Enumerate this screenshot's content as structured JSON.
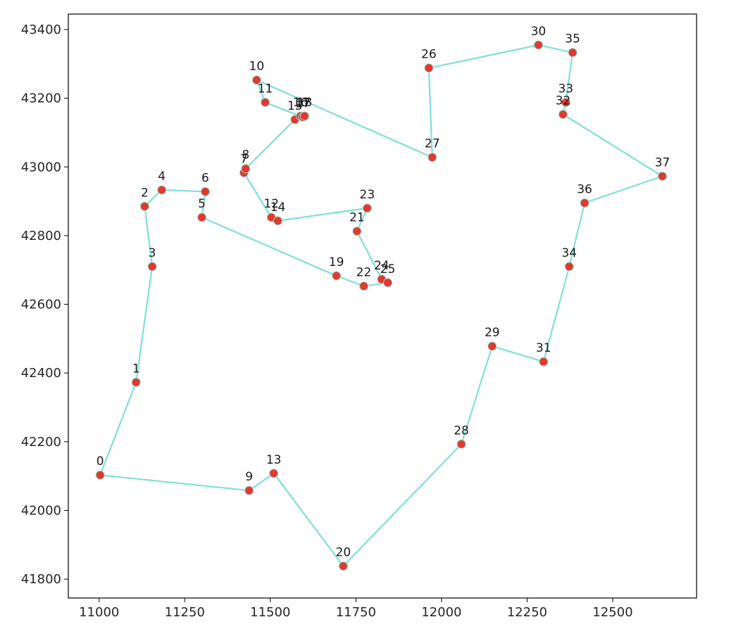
{
  "chart_data": {
    "type": "scatter",
    "title": "",
    "xlabel": "",
    "ylabel": "",
    "xlim": [
      10910,
      12745
    ],
    "ylim": [
      41745,
      43445
    ],
    "grid": false,
    "x_ticks": [
      11000,
      11250,
      11500,
      11750,
      12000,
      12250,
      12500
    ],
    "y_ticks": [
      41800,
      42000,
      42200,
      42400,
      42600,
      42800,
      43000,
      43200,
      43400
    ],
    "colors": {
      "route": "#7fe0d6",
      "points": "#e03a2f",
      "point_edge": "#9ad9d0",
      "axes": "#000000"
    },
    "points": [
      {
        "label": "0",
        "x": 11003,
        "y": 42103
      },
      {
        "label": "1",
        "x": 11108,
        "y": 42373
      },
      {
        "label": "2",
        "x": 11133,
        "y": 42885
      },
      {
        "label": "3",
        "x": 11155,
        "y": 42710
      },
      {
        "label": "4",
        "x": 11183,
        "y": 42933
      },
      {
        "label": "5",
        "x": 11300,
        "y": 42853
      },
      {
        "label": "6",
        "x": 11310,
        "y": 42928
      },
      {
        "label": "7",
        "x": 11423,
        "y": 42983
      },
      {
        "label": "8",
        "x": 11428,
        "y": 42995
      },
      {
        "label": "9",
        "x": 11438,
        "y": 42058
      },
      {
        "label": "10",
        "x": 11460,
        "y": 43253
      },
      {
        "label": "11",
        "x": 11485,
        "y": 43188
      },
      {
        "label": "12",
        "x": 11503,
        "y": 42853
      },
      {
        "label": "13",
        "x": 11510,
        "y": 42108
      },
      {
        "label": "14",
        "x": 11522,
        "y": 42843
      },
      {
        "label": "15",
        "x": 11572,
        "y": 43138
      },
      {
        "label": "16",
        "x": 11588,
        "y": 43148
      },
      {
        "label": "17",
        "x": 11595,
        "y": 43145
      },
      {
        "label": "18",
        "x": 11600,
        "y": 43148
      },
      {
        "label": "19",
        "x": 11693,
        "y": 42683
      },
      {
        "label": "20",
        "x": 11713,
        "y": 41838
      },
      {
        "label": "21",
        "x": 11753,
        "y": 42813
      },
      {
        "label": "22",
        "x": 11773,
        "y": 42653
      },
      {
        "label": "23",
        "x": 11783,
        "y": 42880
      },
      {
        "label": "24",
        "x": 11825,
        "y": 42673
      },
      {
        "label": "25",
        "x": 11843,
        "y": 42663
      },
      {
        "label": "26",
        "x": 11963,
        "y": 43288
      },
      {
        "label": "27",
        "x": 11973,
        "y": 43028
      },
      {
        "label": "28",
        "x": 12058,
        "y": 42193
      },
      {
        "label": "29",
        "x": 12148,
        "y": 42478
      },
      {
        "label": "30",
        "x": 12283,
        "y": 43355
      },
      {
        "label": "31",
        "x": 12298,
        "y": 42433
      },
      {
        "label": "32",
        "x": 12355,
        "y": 43153
      },
      {
        "label": "33",
        "x": 12363,
        "y": 43188
      },
      {
        "label": "34",
        "x": 12373,
        "y": 42710
      },
      {
        "label": "35",
        "x": 12383,
        "y": 43333
      },
      {
        "label": "36",
        "x": 12418,
        "y": 42895
      },
      {
        "label": "37",
        "x": 12645,
        "y": 42973
      }
    ],
    "route": [
      0,
      1,
      3,
      2,
      4,
      6,
      5,
      19,
      22,
      25,
      24,
      21,
      23,
      14,
      12,
      7,
      8,
      15,
      16,
      18,
      17,
      11,
      10,
      27,
      26,
      30,
      35,
      33,
      32,
      37,
      36,
      34,
      31,
      29,
      28,
      20,
      13,
      9,
      0
    ]
  }
}
